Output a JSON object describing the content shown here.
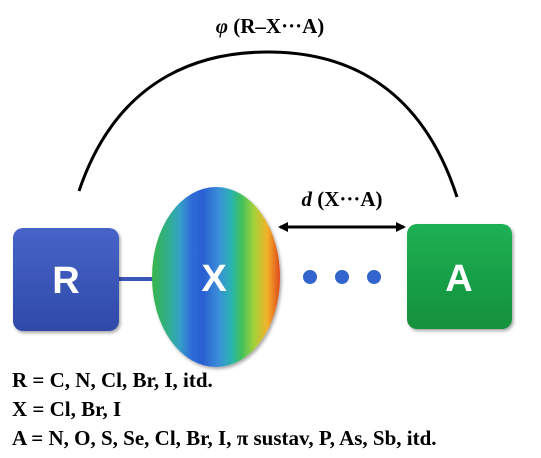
{
  "diagram": {
    "angle_label": {
      "symbol": "φ",
      "text": " (R–X···A)"
    },
    "distance_label": {
      "symbol": "d",
      "text": " (X···A)"
    },
    "nodes": {
      "r": "R",
      "x": "X",
      "a": "A"
    }
  },
  "legend": [
    "R = C, N, Cl, Br, I, itd.",
    "X = Cl, Br, I",
    "A = N, O, S, Se, Cl, Br, I, π sustav, P, As, Sb, itd."
  ],
  "colors": {
    "r_box": "#3a56b8",
    "a_box": "#17a046",
    "dots": "#3264cc",
    "line": "#000000"
  }
}
